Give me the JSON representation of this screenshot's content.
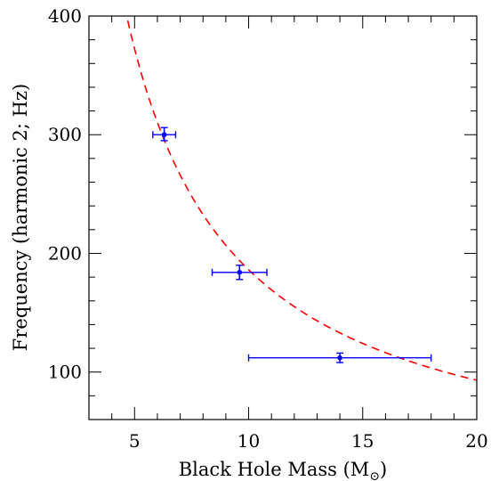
{
  "chart_data": {
    "type": "scatter",
    "xlabel": "Black Hole Mass (M",
    "xlabel_subscript": "⊙",
    "xlabel_suffix": ")",
    "ylabel": "Frequency (harmonic 2; Hz)",
    "xlim": [
      3,
      20
    ],
    "ylim": [
      60,
      400
    ],
    "xticks": [
      5,
      10,
      15,
      20
    ],
    "yticks": [
      100,
      200,
      300,
      400
    ],
    "grid": false,
    "points": [
      {
        "x": 6.3,
        "y": 300,
        "xerr": [
          5.8,
          6.8
        ],
        "yerr": [
          295,
          306
        ]
      },
      {
        "x": 9.6,
        "y": 184,
        "xerr": [
          8.4,
          10.8
        ],
        "yerr": [
          178,
          190
        ]
      },
      {
        "x": 14.0,
        "y": 112,
        "xerr": [
          10.0,
          18.0
        ],
        "yerr": [
          108,
          116
        ]
      }
    ],
    "fit_curve": {
      "form": "y = k / x",
      "k": 1862,
      "style": "dashed"
    },
    "colors": {
      "points": "#0000ff",
      "curve": "#ff0000",
      "axes": "#000000"
    }
  }
}
